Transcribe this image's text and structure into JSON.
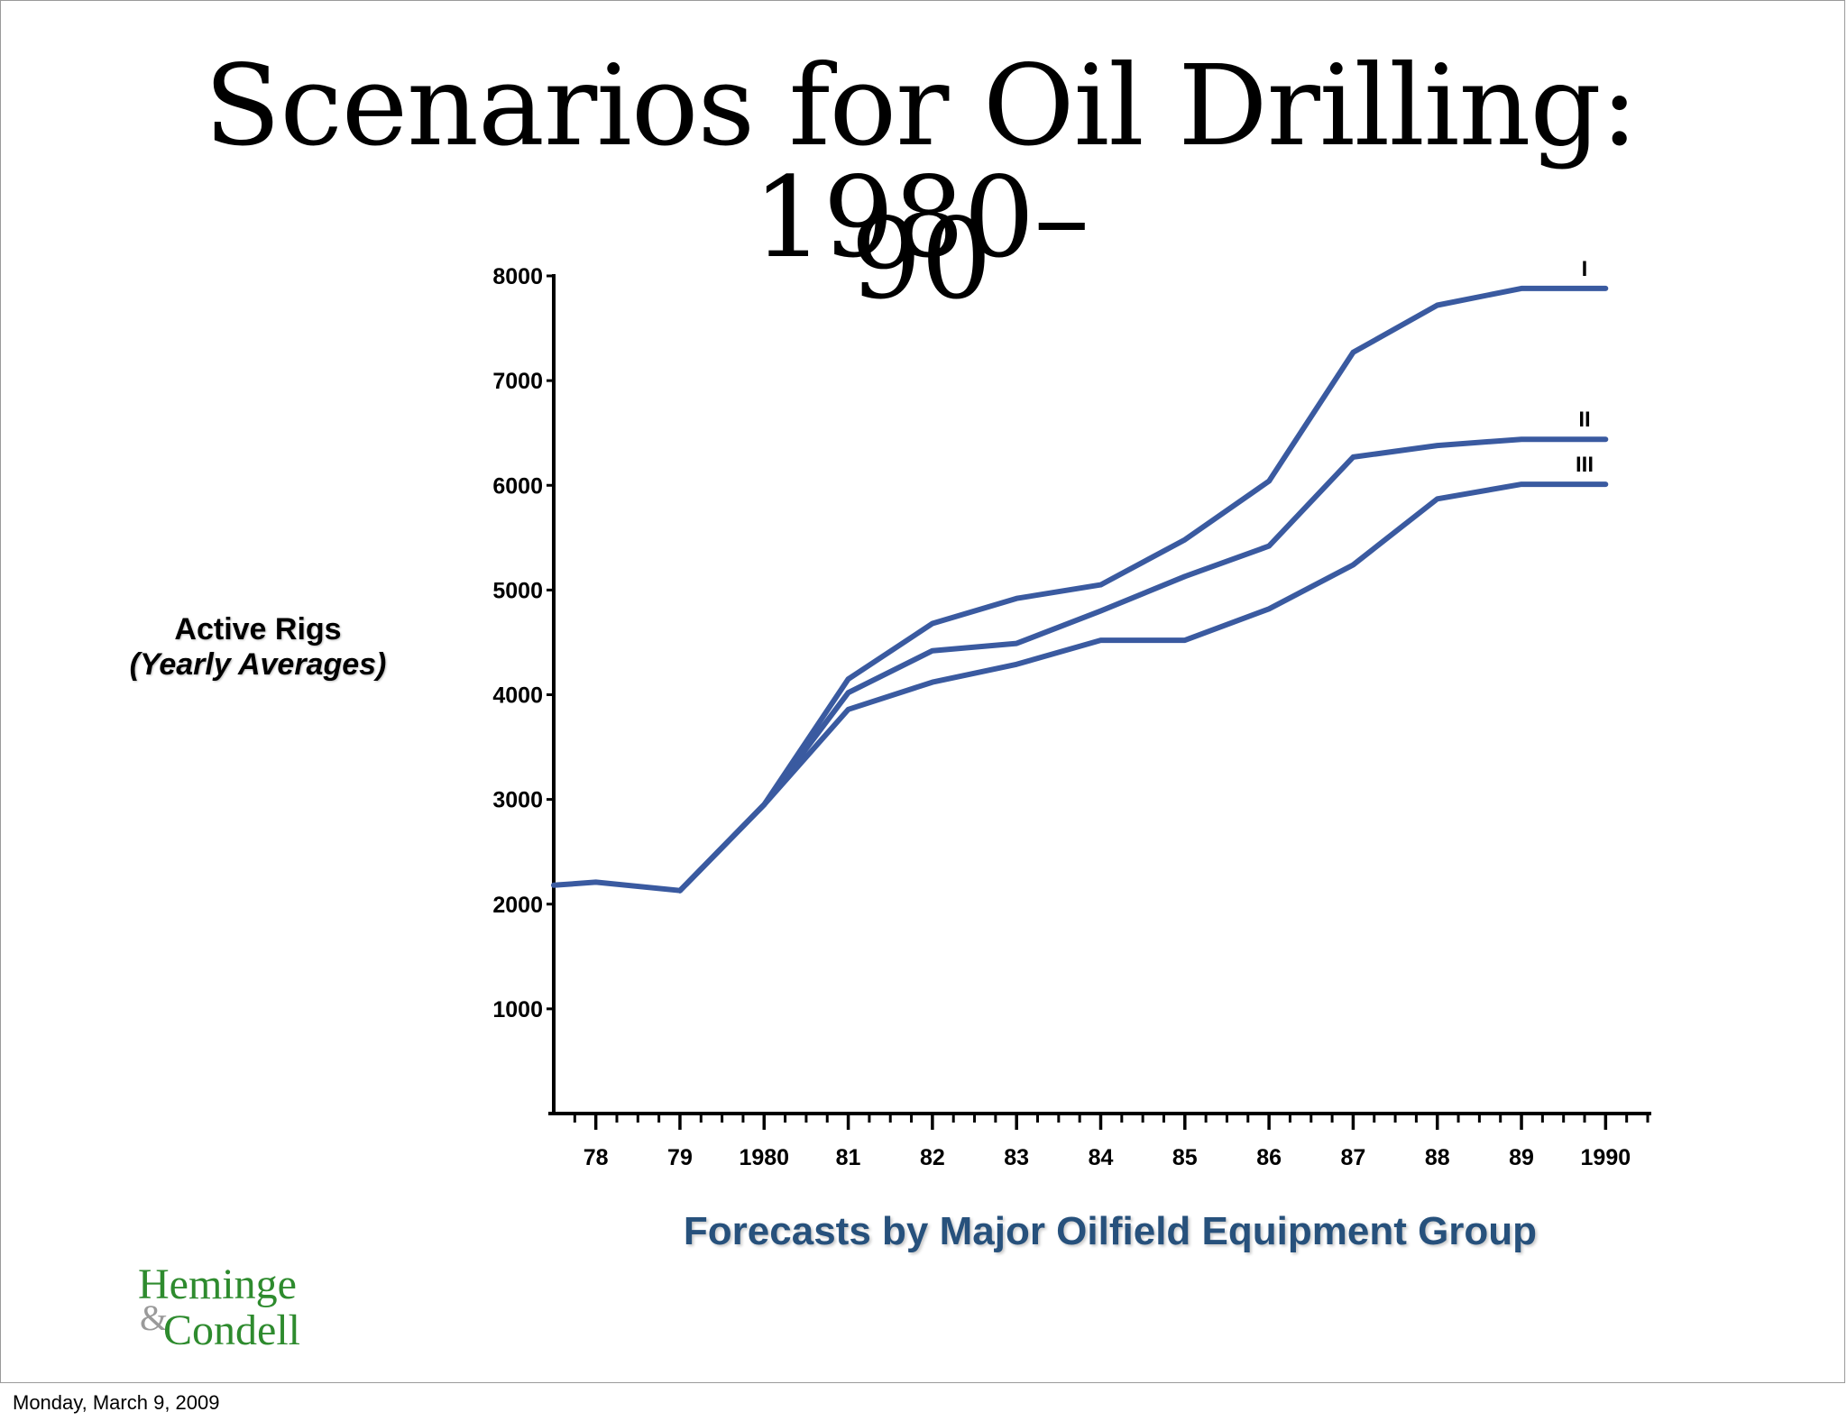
{
  "slide": {
    "title_line1": "Scenarios for Oil Drilling: 1980–",
    "title_line2": "90",
    "footer_date": "Monday, March 9, 2009",
    "logo": {
      "line1": "Heminge",
      "ampersand": "&",
      "line2": "Condell",
      "color": "#2e8b2e"
    }
  },
  "chart_data": {
    "type": "line",
    "title": "Scenarios for Oil Drilling: 1980–90",
    "ylabel": "Active Rigs",
    "ylabel_sub": "(Yearly Averages)",
    "xlabel": "",
    "caption": "Forecasts by Major Oilfield Equipment Group",
    "ylim": [
      0,
      8000
    ],
    "yticks": [
      1000,
      2000,
      3000,
      4000,
      5000,
      6000,
      7000,
      8000
    ],
    "ytick_labels": [
      "1000",
      "2000",
      "3000",
      "4000",
      "5000",
      "6000",
      "7000",
      "8000"
    ],
    "xlim": [
      1977.5,
      1990.5
    ],
    "xticks": [
      1978,
      1979,
      1980,
      1981,
      1982,
      1983,
      1984,
      1985,
      1986,
      1987,
      1988,
      1989,
      1990
    ],
    "xtick_labels": [
      "78",
      "79",
      "1980",
      "81",
      "82",
      "83",
      "84",
      "85",
      "86",
      "87",
      "88",
      "89",
      "1990"
    ],
    "grid": false,
    "line_color": "#3a5aa0",
    "historical": {
      "x": [
        1977.5,
        1978,
        1979
      ],
      "y": [
        2180,
        2210,
        2130
      ]
    },
    "series": [
      {
        "name": "I",
        "x": [
          1979,
          1980,
          1981,
          1982,
          1983,
          1984,
          1985,
          1986,
          1987,
          1988,
          1989,
          1990
        ],
        "y": [
          2130,
          2950,
          4150,
          4680,
          4920,
          5050,
          5480,
          6040,
          7270,
          7720,
          7880,
          7880
        ]
      },
      {
        "name": "II",
        "x": [
          1979,
          1980,
          1981,
          1982,
          1983,
          1984,
          1985,
          1986,
          1987,
          1988,
          1989,
          1990
        ],
        "y": [
          2130,
          2950,
          4020,
          4420,
          4490,
          4800,
          5130,
          5420,
          6270,
          6380,
          6440,
          6440
        ]
      },
      {
        "name": "III",
        "x": [
          1979,
          1980,
          1981,
          1982,
          1983,
          1984,
          1985,
          1986,
          1987,
          1988,
          1989,
          1990
        ],
        "y": [
          2130,
          2950,
          3860,
          4120,
          4290,
          4520,
          4520,
          4820,
          5240,
          5870,
          6010,
          6010
        ]
      }
    ]
  }
}
